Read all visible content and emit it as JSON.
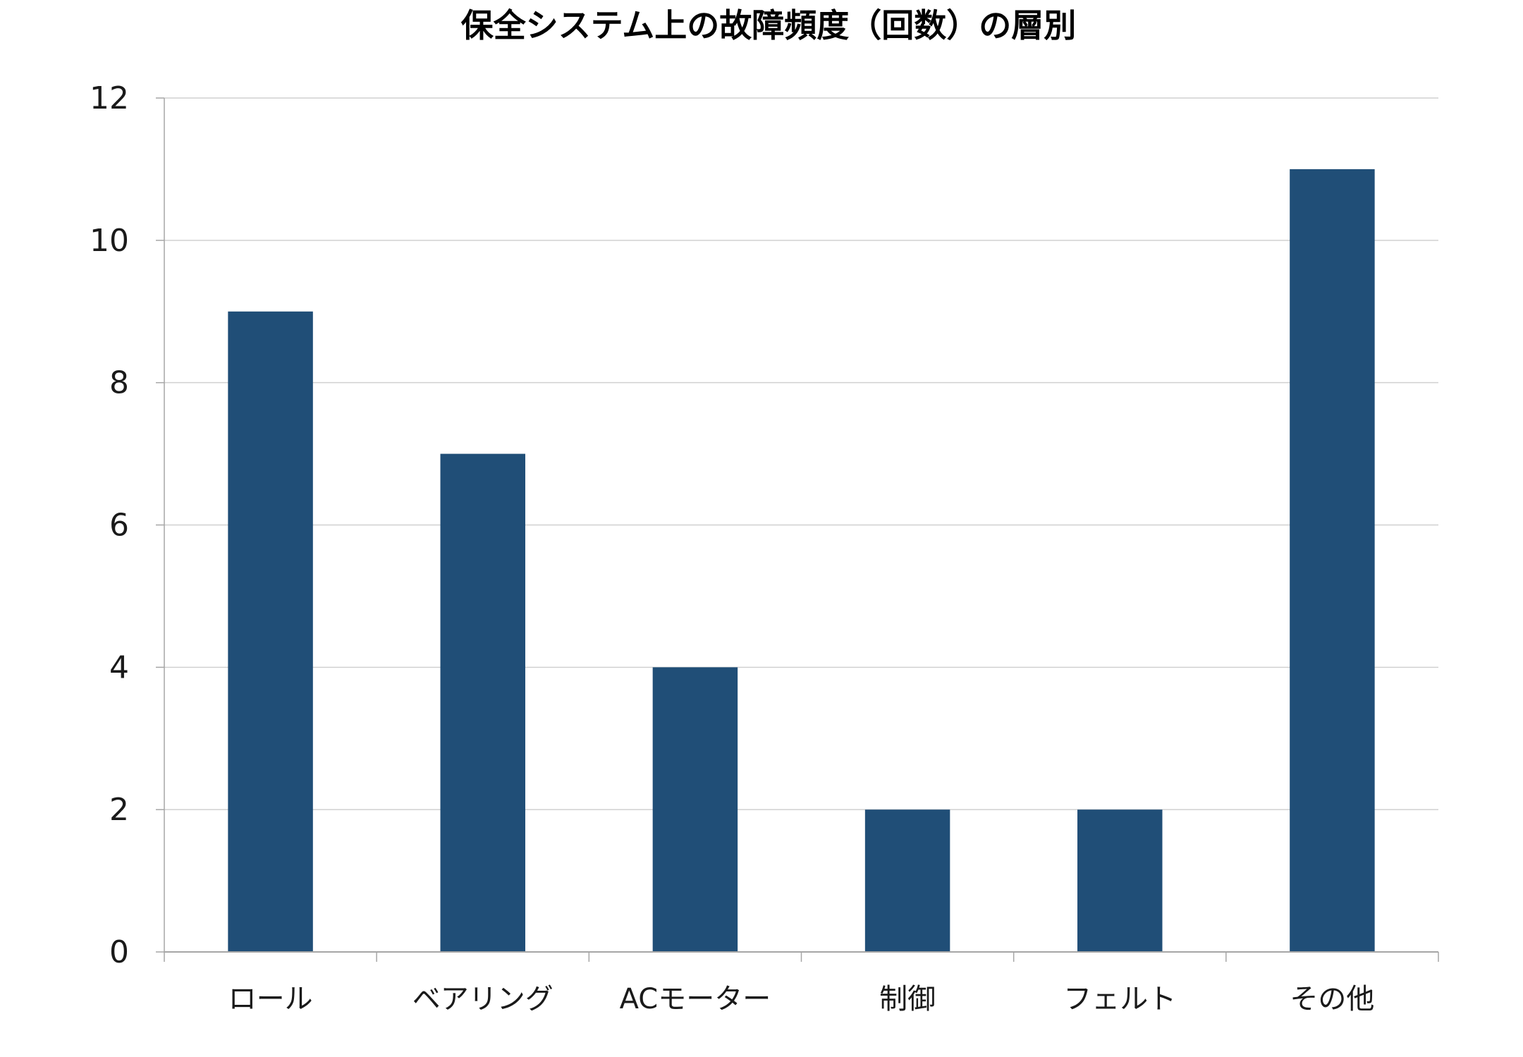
{
  "chart_data": {
    "type": "bar",
    "title": "保全システム上の故障頻度（回数）の層別",
    "categories": [
      "ロール",
      "ベアリング",
      "ACモーター",
      "制御",
      "フェルト",
      "その他"
    ],
    "values": [
      9,
      7,
      4,
      2,
      2,
      11
    ],
    "xlabel": "",
    "ylabel": "",
    "ylim": [
      0,
      12
    ],
    "yticks": [
      0,
      2,
      4,
      6,
      8,
      10,
      12
    ],
    "grid": true,
    "legend": "none",
    "colors": {
      "bar": "#204e77",
      "grid": "#d0d0d0",
      "axis": "#a6a6a6"
    }
  }
}
